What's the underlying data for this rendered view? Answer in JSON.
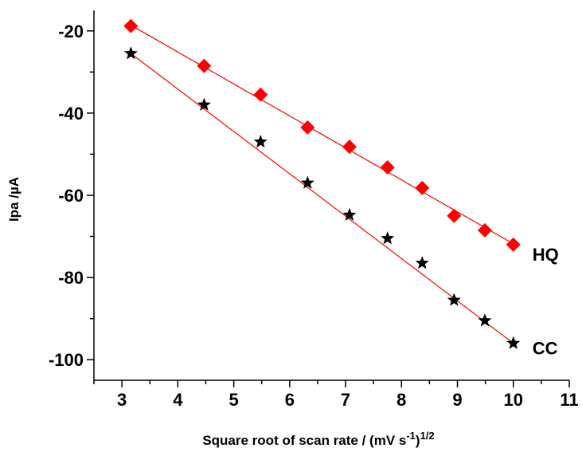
{
  "chart_data": {
    "type": "scatter",
    "title": "",
    "xlabel": "Square root of scan rate / (mV s",
    "xlabel_sup1": "-1",
    "xlabel_mid": ")",
    "xlabel_sup2": "1/2",
    "ylabel": "Ipa /",
    "ylabel_unit": "µA",
    "xlim": [
      2.5,
      11
    ],
    "ylim": [
      -105,
      -15
    ],
    "x_ticks": [
      3,
      4,
      5,
      6,
      7,
      8,
      9,
      10,
      11
    ],
    "y_ticks": [
      -20,
      -40,
      -60,
      -80,
      -100
    ],
    "x_tick_labels": [
      "3",
      "4",
      "5",
      "6",
      "7",
      "8",
      "9",
      "10",
      "11"
    ],
    "y_tick_labels": [
      "-20",
      "-40",
      "-60",
      "-80",
      "-100"
    ],
    "grid": false,
    "series": [
      {
        "name": "HQ",
        "marker": "diamond",
        "color": "#ff0000",
        "line_color": "#ff0000",
        "x": [
          3.16,
          4.47,
          5.48,
          6.32,
          7.07,
          7.75,
          8.37,
          8.94,
          9.49,
          10.0
        ],
        "y": [
          -18.8,
          -28.5,
          -35.5,
          -43.5,
          -48.2,
          -53.2,
          -58.2,
          -65.0,
          -68.5,
          -72.0
        ],
        "fit": [
          [
            3.16,
            -18.6
          ],
          [
            10.0,
            -71.8
          ]
        ]
      },
      {
        "name": "CC",
        "marker": "star",
        "color": "#000000",
        "line_color": "#ff0000",
        "x": [
          3.16,
          4.47,
          5.48,
          6.32,
          7.07,
          7.75,
          8.37,
          8.94,
          9.49,
          10.0
        ],
        "y": [
          -25.5,
          -38.0,
          -47.0,
          -57.0,
          -64.8,
          -70.5,
          -76.5,
          -85.5,
          -90.5,
          -96.0
        ],
        "fit": [
          [
            3.16,
            -25.5
          ],
          [
            10.0,
            -96.0
          ]
        ]
      }
    ]
  }
}
